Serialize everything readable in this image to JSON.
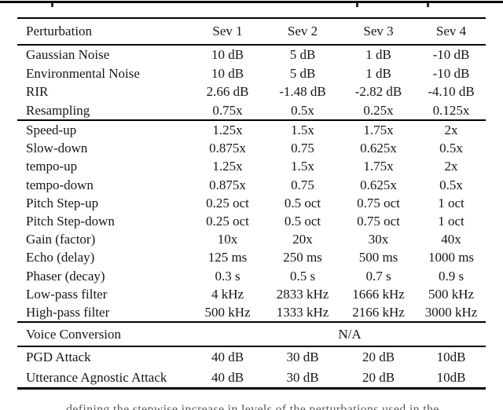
{
  "colors": {
    "ink": "#161616",
    "rule": "#000000",
    "background": "#ffffff"
  },
  "captions": {
    "bottom_fragment": "defining the stepwise increase in levels of the perturbations used in the"
  },
  "table": {
    "header": [
      "Perturbation",
      "Sev 1",
      "Sev 2",
      "Sev 3",
      "Sev 4"
    ],
    "sections": [
      {
        "name": "noise-and-room",
        "rows": [
          {
            "label": "Gaussian Noise",
            "values": [
              "10 dB",
              "5 dB",
              "1 dB",
              "-10 dB"
            ]
          },
          {
            "label": "Environmental Noise",
            "values": [
              "10 dB",
              "5 dB",
              "1 dB",
              "-10 dB"
            ]
          },
          {
            "label": "RIR",
            "values": [
              "2.66 dB",
              "-1.48 dB",
              "-2.82 dB",
              "-4.10 dB"
            ]
          },
          {
            "label": "Resampling",
            "values": [
              "0.75x",
              "0.5x",
              "0.25x",
              "0.125x"
            ]
          }
        ]
      },
      {
        "name": "signal-modifications",
        "rows": [
          {
            "label": "Speed-up",
            "values": [
              "1.25x",
              "1.5x",
              "1.75x",
              "2x"
            ]
          },
          {
            "label": "Slow-down",
            "values": [
              "0.875x",
              "0.75",
              "0.625x",
              "0.5x"
            ]
          },
          {
            "label": "tempo-up",
            "values": [
              "1.25x",
              "1.5x",
              "1.75x",
              "2x"
            ]
          },
          {
            "label": "tempo-down",
            "values": [
              "0.875x",
              "0.75",
              "0.625x",
              "0.5x"
            ]
          },
          {
            "label": "Pitch Step-up",
            "values": [
              "0.25 oct",
              "0.5 oct",
              "0.75 oct",
              "1 oct"
            ]
          },
          {
            "label": "Pitch Step-down",
            "values": [
              "0.25 oct",
              "0.5 oct",
              "0.75 oct",
              "1 oct"
            ]
          },
          {
            "label": "Gain (factor)",
            "values": [
              "10x",
              "20x",
              "30x",
              "40x"
            ]
          },
          {
            "label": "Echo (delay)",
            "values": [
              "125 ms",
              "250 ms",
              "500 ms",
              "1000 ms"
            ]
          },
          {
            "label": "Phaser (decay)",
            "values": [
              "0.3 s",
              "0.5 s",
              "0.7 s",
              "0.9 s"
            ]
          },
          {
            "label": "Low-pass filter",
            "values": [
              "4 kHz",
              "2833 kHz",
              "1666 kHz",
              "500 kHz"
            ]
          },
          {
            "label": "High-pass filter",
            "values": [
              "500 kHz",
              "1333 kHz",
              "2166 kHz",
              "3000 kHz"
            ]
          }
        ]
      },
      {
        "name": "voice-conversion",
        "rows": [
          {
            "label": "Voice Conversion",
            "span": "N/A"
          }
        ]
      },
      {
        "name": "adversarial",
        "rows": [
          {
            "label": "PGD Attack",
            "values": [
              "40 dB",
              "30 dB",
              "20 dB",
              "10dB"
            ]
          },
          {
            "label": "Utterance Agnostic Attack",
            "values": [
              "40 dB",
              "30 dB",
              "20 dB",
              "10dB"
            ]
          }
        ]
      }
    ]
  }
}
